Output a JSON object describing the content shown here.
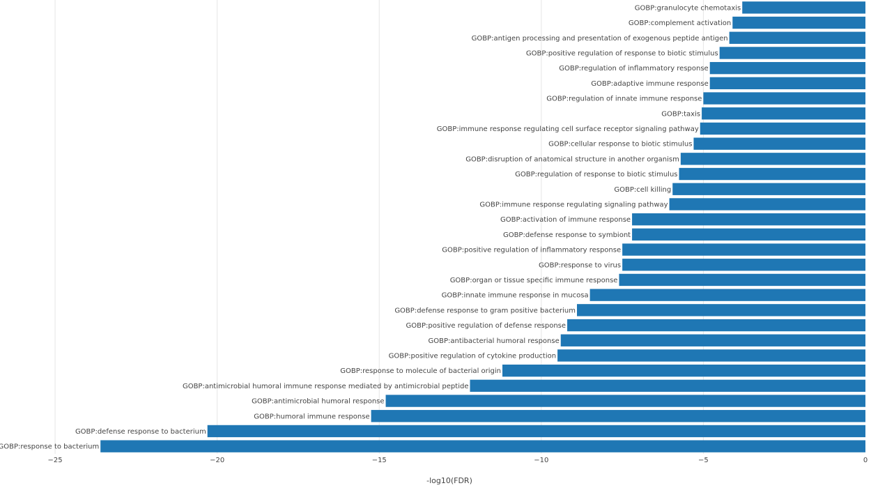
{
  "chart_data": {
    "type": "bar",
    "orientation": "horizontal",
    "title": "",
    "xlabel": "-log10(FDR)",
    "ylabel": "",
    "xlim": [
      -26.7,
      0
    ],
    "xticks": [
      -25,
      -20,
      -15,
      -10,
      -5,
      0
    ],
    "xtick_labels": [
      "−25",
      "−20",
      "−15",
      "−10",
      "−5",
      "0"
    ],
    "grid": true,
    "bar_color": "#1f77b4",
    "categories": [
      "GOBP:granulocyte chemotaxis",
      "GOBP:complement activation",
      "GOBP:antigen processing and presentation of exogenous peptide antigen",
      "GOBP:positive regulation of response to biotic stimulus",
      "GOBP:regulation of inflammatory response",
      "GOBP:adaptive immune response",
      "GOBP:regulation of innate immune response",
      "GOBP:taxis",
      "GOBP:immune response regulating cell surface receptor signaling pathway",
      "GOBP:cellular response to biotic stimulus",
      "GOBP:disruption of anatomical structure in another organism",
      "GOBP:regulation of response to biotic stimulus",
      "GOBP:cell killing",
      "GOBP:immune response regulating signaling pathway",
      "GOBP:activation of immune response",
      "GOBP:defense response to symbiont",
      "GOBP:positive regulation of inflammatory response",
      "GOBP:response to virus",
      "GOBP:organ or tissue specific immune response",
      "GOBP:innate immune response in mucosa",
      "GOBP:defense response to gram positive bacterium",
      "GOBP:positive regulation of defense response",
      "GOBP:antibacterial humoral response",
      "GOBP:positive regulation of cytokine production",
      "GOBP:response to molecule of bacterial origin",
      "GOBP:antimicrobial humoral immune response mediated by antimicrobial peptide",
      "GOBP:antimicrobial humoral response",
      "GOBP:humoral immune response",
      "GOBP:defense response to bacterium",
      "GOBP:response to bacterium"
    ],
    "values": [
      -3.8,
      -4.1,
      -4.2,
      -4.5,
      -4.8,
      -4.8,
      -5.0,
      -5.05,
      -5.1,
      -5.3,
      -5.7,
      -5.75,
      -5.95,
      -6.05,
      -7.2,
      -7.2,
      -7.5,
      -7.5,
      -7.6,
      -8.5,
      -8.9,
      -9.2,
      -9.4,
      -9.5,
      -11.2,
      -12.2,
      -14.8,
      -15.25,
      -20.3,
      -23.6
    ]
  }
}
